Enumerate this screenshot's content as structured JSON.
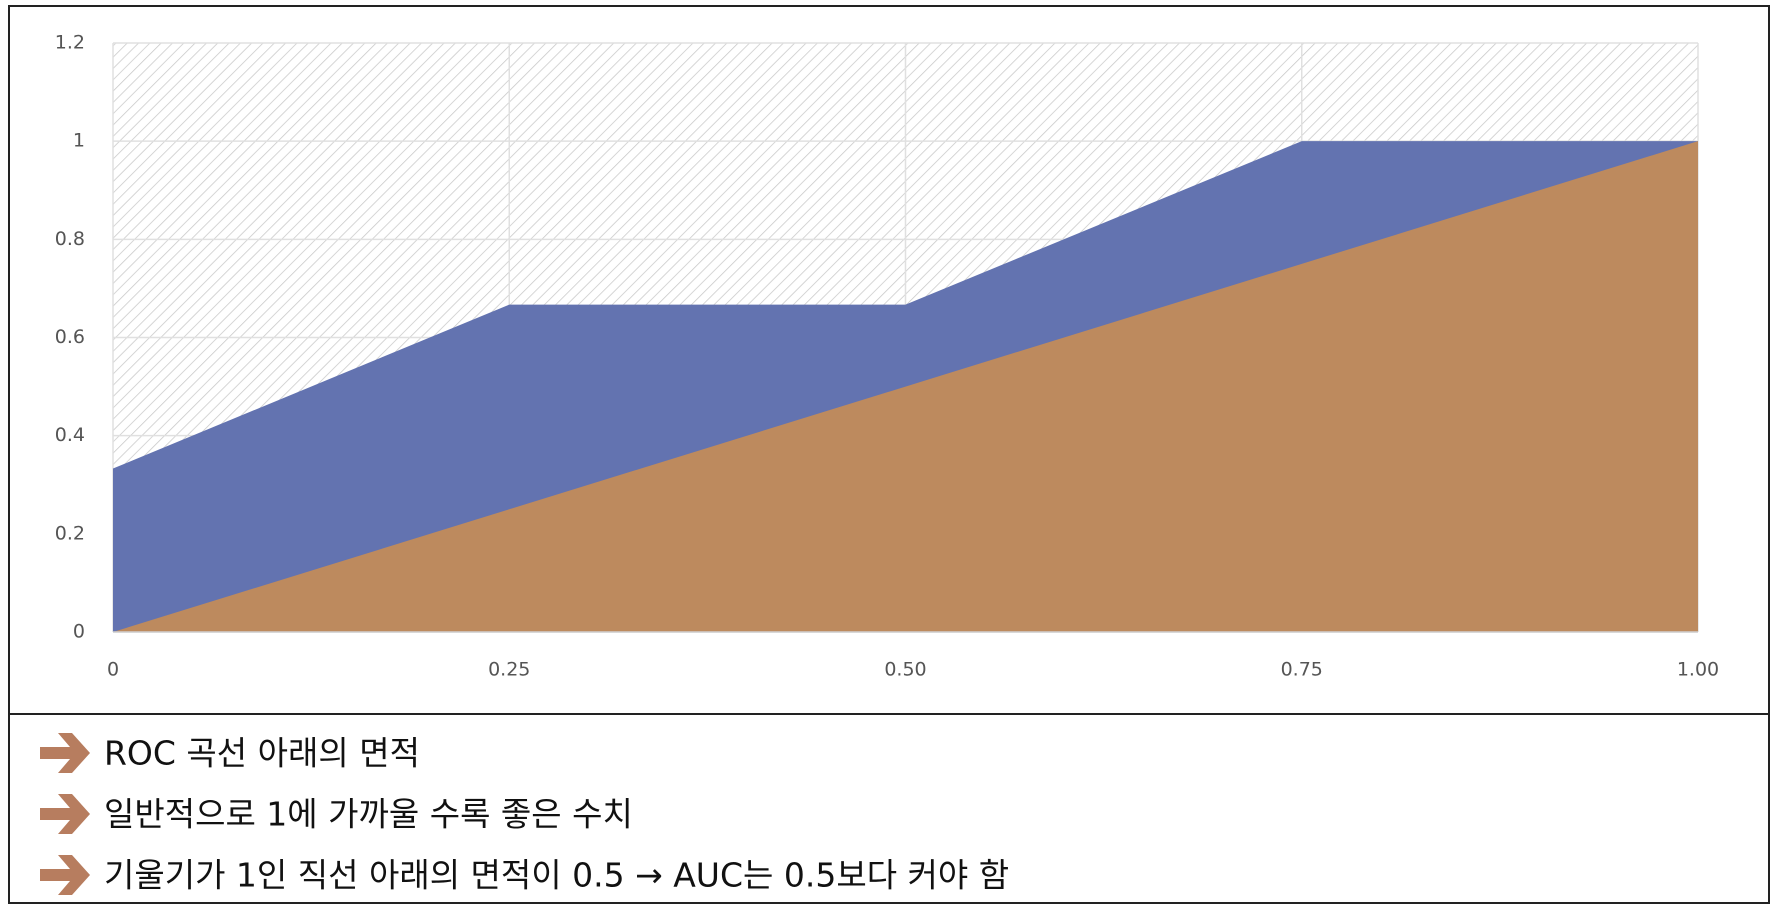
{
  "chart_data": {
    "type": "area",
    "x": [
      0,
      0.25,
      0.5,
      0.75,
      1
    ],
    "series": [
      {
        "color": "#6373b0",
        "values": [
          0.333,
          0.667,
          0.667,
          1,
          1
        ]
      },
      {
        "color": "#bd8a5e",
        "values": [
          0,
          0.25,
          0.5,
          0.75,
          1
        ]
      }
    ],
    "xlim": [
      0,
      1
    ],
    "ylim": [
      0,
      1.2
    ],
    "xticks": [
      0,
      {
        "value": 0.25,
        "label": "0.25"
      },
      {
        "value": 0.5,
        "label": "0.50"
      },
      {
        "value": 0.75,
        "label": "0.75"
      },
      {
        "value": 1,
        "label": "1.00"
      }
    ],
    "yticks": [
      0,
      0.2,
      0.4,
      0.6,
      0.8,
      1,
      1.2
    ],
    "grid": true,
    "hatch": true
  },
  "notes": [
    "ROC 곡선 아래의 면적",
    "일반적으로 1에 가까울 수록 좋은 수치",
    "기울기가 1인 직선 아래의 면적이 0.5 → AUC는 0.5보다 커야 함"
  ]
}
